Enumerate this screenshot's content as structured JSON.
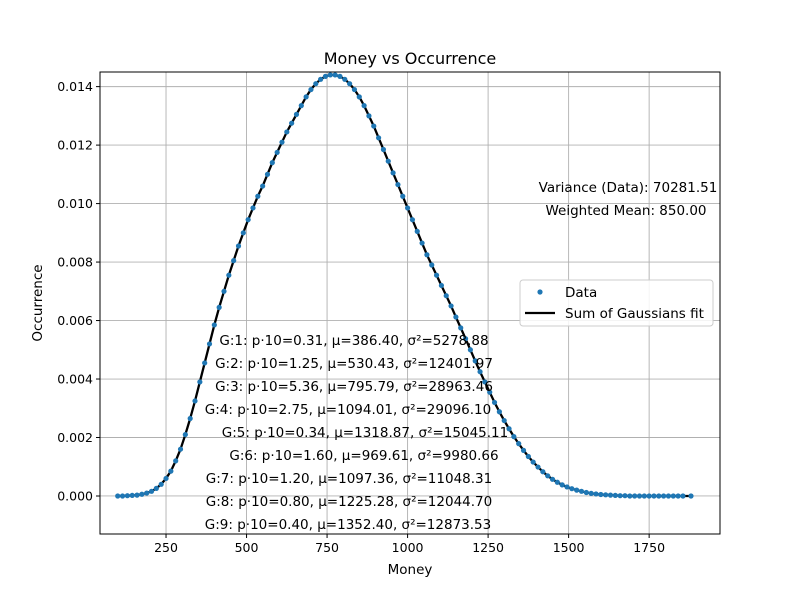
{
  "chart_data": {
    "type": "scatter",
    "title": "Money vs Occurrence",
    "xlabel": "Money",
    "ylabel": "Occurrence",
    "xlim": [
      45,
      1970
    ],
    "ylim": [
      -0.0013,
      0.0145
    ],
    "grid": true,
    "xticks": [
      250,
      500,
      750,
      1000,
      1250,
      1500,
      1750
    ],
    "yticks": [
      0.0,
      0.002,
      0.004,
      0.006,
      0.008,
      0.01,
      0.012,
      0.014
    ],
    "ytick_labels": [
      "0.000",
      "0.002",
      "0.004",
      "0.006",
      "0.008",
      "0.010",
      "0.012",
      "0.014"
    ],
    "legend": {
      "placement": "center-right",
      "entries": [
        "Data",
        "Sum of Gaussians fit"
      ]
    },
    "colors": {
      "data": "#1f77b4",
      "fit": "#000000"
    },
    "stats_annotations": [
      "Variance (Data): 70281.51",
      "Weighted Mean: 850.00"
    ],
    "components": [
      {
        "label": "G:1",
        "p": 0.31,
        "mu": 386.4,
        "sigma2": 5278.88
      },
      {
        "label": "G:2",
        "p": 1.25,
        "mu": 530.43,
        "sigma2": 12401.97
      },
      {
        "label": "G:3",
        "p": 5.36,
        "mu": 795.79,
        "sigma2": 28963.46
      },
      {
        "label": "G:4",
        "p": 2.75,
        "mu": 1094.01,
        "sigma2": 29096.1
      },
      {
        "label": "G:5",
        "p": 0.34,
        "mu": 1318.87,
        "sigma2": 15045.11
      },
      {
        "label": "G:6",
        "p": 1.6,
        "mu": 969.61,
        "sigma2": 9980.66
      },
      {
        "label": "G:7",
        "p": 1.2,
        "mu": 1097.36,
        "sigma2": 11048.31
      },
      {
        "label": "G:8",
        "p": 0.8,
        "mu": 1225.28,
        "sigma2": 12044.7
      },
      {
        "label": "G:9",
        "p": 0.4,
        "mu": 1352.4,
        "sigma2": 12873.53
      }
    ],
    "component_texts": [
      "G:1: p·10=0.31, μ=386.40, σ²=5278.88",
      "G:2: p·10=1.25, μ=530.43, σ²=12401.97",
      "G:3: p·10=5.36, μ=795.79, σ²=28963.46",
      "G:4: p·10=2.75, μ=1094.01, σ²=29096.10",
      "G:5: p·10=0.34, μ=1318.87, σ²=15045.11",
      "G:6: p·10=1.60, μ=969.61, σ²=9980.66",
      "G:7: p·10=1.20, μ=1097.36, σ²=11048.31",
      "G:8: p·10=0.80, μ=1225.28, σ²=12044.70",
      "G:9: p·10=0.40, μ=1352.40, σ²=12873.53"
    ],
    "series": [
      {
        "name": "Data",
        "kind": "scatter",
        "x": [
          100,
          115,
          130,
          145,
          160,
          175,
          190,
          205,
          220,
          235,
          250,
          265,
          280,
          295,
          310,
          325,
          340,
          355,
          370,
          385,
          400,
          415,
          430,
          445,
          460,
          475,
          490,
          505,
          520,
          535,
          550,
          565,
          580,
          595,
          610,
          625,
          640,
          655,
          670,
          685,
          700,
          715,
          730,
          745,
          760,
          775,
          790,
          805,
          820,
          835,
          850,
          865,
          880,
          895,
          910,
          925,
          940,
          955,
          970,
          985,
          1000,
          1015,
          1030,
          1045,
          1060,
          1075,
          1090,
          1105,
          1120,
          1135,
          1150,
          1165,
          1180,
          1195,
          1210,
          1225,
          1240,
          1255,
          1270,
          1285,
          1300,
          1315,
          1330,
          1345,
          1360,
          1375,
          1390,
          1405,
          1420,
          1435,
          1450,
          1465,
          1480,
          1495,
          1510,
          1525,
          1540,
          1555,
          1570,
          1585,
          1600,
          1615,
          1630,
          1645,
          1660,
          1675,
          1690,
          1705,
          1720,
          1735,
          1750,
          1765,
          1780,
          1795,
          1810,
          1825,
          1840,
          1855,
          1880
        ],
        "y": [
          0.0,
          0.0,
          1e-05,
          2e-05,
          3e-05,
          6e-05,
          0.0001,
          0.00016,
          0.00026,
          0.0004,
          0.0006,
          0.00085,
          0.0012,
          0.0016,
          0.0021,
          0.00265,
          0.00325,
          0.0039,
          0.00455,
          0.0052,
          0.00585,
          0.00645,
          0.007,
          0.00755,
          0.00805,
          0.00855,
          0.009,
          0.00945,
          0.00985,
          0.01025,
          0.0106,
          0.011,
          0.0114,
          0.01175,
          0.0121,
          0.01245,
          0.01275,
          0.01305,
          0.01335,
          0.01365,
          0.0139,
          0.0141,
          0.01425,
          0.01435,
          0.0144,
          0.0144,
          0.01435,
          0.01425,
          0.0141,
          0.0139,
          0.01365,
          0.01335,
          0.013,
          0.01265,
          0.01225,
          0.01185,
          0.01145,
          0.01105,
          0.01065,
          0.01025,
          0.00985,
          0.00945,
          0.00905,
          0.00865,
          0.00825,
          0.0079,
          0.00755,
          0.0072,
          0.00685,
          0.0065,
          0.00612,
          0.00575,
          0.00538,
          0.005,
          0.00462,
          0.00425,
          0.0039,
          0.00355,
          0.0032,
          0.00288,
          0.00258,
          0.0023,
          0.00203,
          0.00179,
          0.00156,
          0.00135,
          0.00116,
          0.00099,
          0.00083,
          0.00069,
          0.00057,
          0.00047,
          0.00038,
          0.00031,
          0.00025,
          0.0002,
          0.00016,
          0.00012,
          9e-05,
          7e-05,
          5e-05,
          4e-05,
          3e-05,
          2e-05,
          1e-05,
          1e-05,
          0.0,
          0.0,
          0.0,
          0.0,
          0.0,
          0.0,
          0.0,
          0.0,
          0.0,
          0.0,
          0.0,
          0.0,
          0.0
        ]
      },
      {
        "name": "Sum of Gaussians fit",
        "kind": "line",
        "x": [
          100,
          115,
          130,
          145,
          160,
          175,
          190,
          205,
          220,
          235,
          250,
          265,
          280,
          295,
          310,
          325,
          340,
          355,
          370,
          385,
          400,
          415,
          430,
          445,
          460,
          475,
          490,
          505,
          520,
          535,
          550,
          565,
          580,
          595,
          610,
          625,
          640,
          655,
          670,
          685,
          700,
          715,
          730,
          745,
          760,
          775,
          790,
          805,
          820,
          835,
          850,
          865,
          880,
          895,
          910,
          925,
          940,
          955,
          970,
          985,
          1000,
          1015,
          1030,
          1045,
          1060,
          1075,
          1090,
          1105,
          1120,
          1135,
          1150,
          1165,
          1180,
          1195,
          1210,
          1225,
          1240,
          1255,
          1270,
          1285,
          1300,
          1315,
          1330,
          1345,
          1360,
          1375,
          1390,
          1405,
          1420,
          1435,
          1450,
          1465,
          1480,
          1495,
          1510,
          1525,
          1540,
          1555,
          1570,
          1585,
          1600,
          1615,
          1630,
          1645,
          1660,
          1675,
          1690,
          1705,
          1720,
          1735,
          1750,
          1765,
          1780,
          1795,
          1810,
          1825,
          1840,
          1855,
          1880
        ],
        "y": [
          0.0,
          0.0,
          1e-05,
          2e-05,
          3e-05,
          6e-05,
          0.0001,
          0.00016,
          0.00026,
          0.0004,
          0.0006,
          0.00085,
          0.0012,
          0.0016,
          0.0021,
          0.00265,
          0.00325,
          0.0039,
          0.00455,
          0.0052,
          0.00585,
          0.00645,
          0.007,
          0.00755,
          0.00805,
          0.00855,
          0.009,
          0.00945,
          0.00985,
          0.01025,
          0.0106,
          0.011,
          0.0114,
          0.01175,
          0.0121,
          0.01245,
          0.01275,
          0.01305,
          0.01335,
          0.01365,
          0.0139,
          0.0141,
          0.01425,
          0.01435,
          0.0144,
          0.0144,
          0.01435,
          0.01425,
          0.0141,
          0.0139,
          0.01365,
          0.01335,
          0.013,
          0.01265,
          0.01225,
          0.01185,
          0.01145,
          0.01105,
          0.01065,
          0.01025,
          0.00985,
          0.00945,
          0.00905,
          0.00865,
          0.00825,
          0.0079,
          0.00755,
          0.0072,
          0.00685,
          0.0065,
          0.00612,
          0.00575,
          0.00538,
          0.005,
          0.00462,
          0.00425,
          0.0039,
          0.00355,
          0.0032,
          0.00288,
          0.00258,
          0.0023,
          0.00203,
          0.00179,
          0.00156,
          0.00135,
          0.00116,
          0.00099,
          0.00083,
          0.00069,
          0.00057,
          0.00047,
          0.00038,
          0.00031,
          0.00025,
          0.0002,
          0.00016,
          0.00012,
          9e-05,
          7e-05,
          5e-05,
          4e-05,
          3e-05,
          2e-05,
          1e-05,
          1e-05,
          0.0,
          0.0,
          0.0,
          0.0,
          0.0,
          0.0,
          0.0,
          0.0,
          0.0,
          0.0,
          0.0,
          0.0,
          0.0
        ]
      }
    ]
  }
}
